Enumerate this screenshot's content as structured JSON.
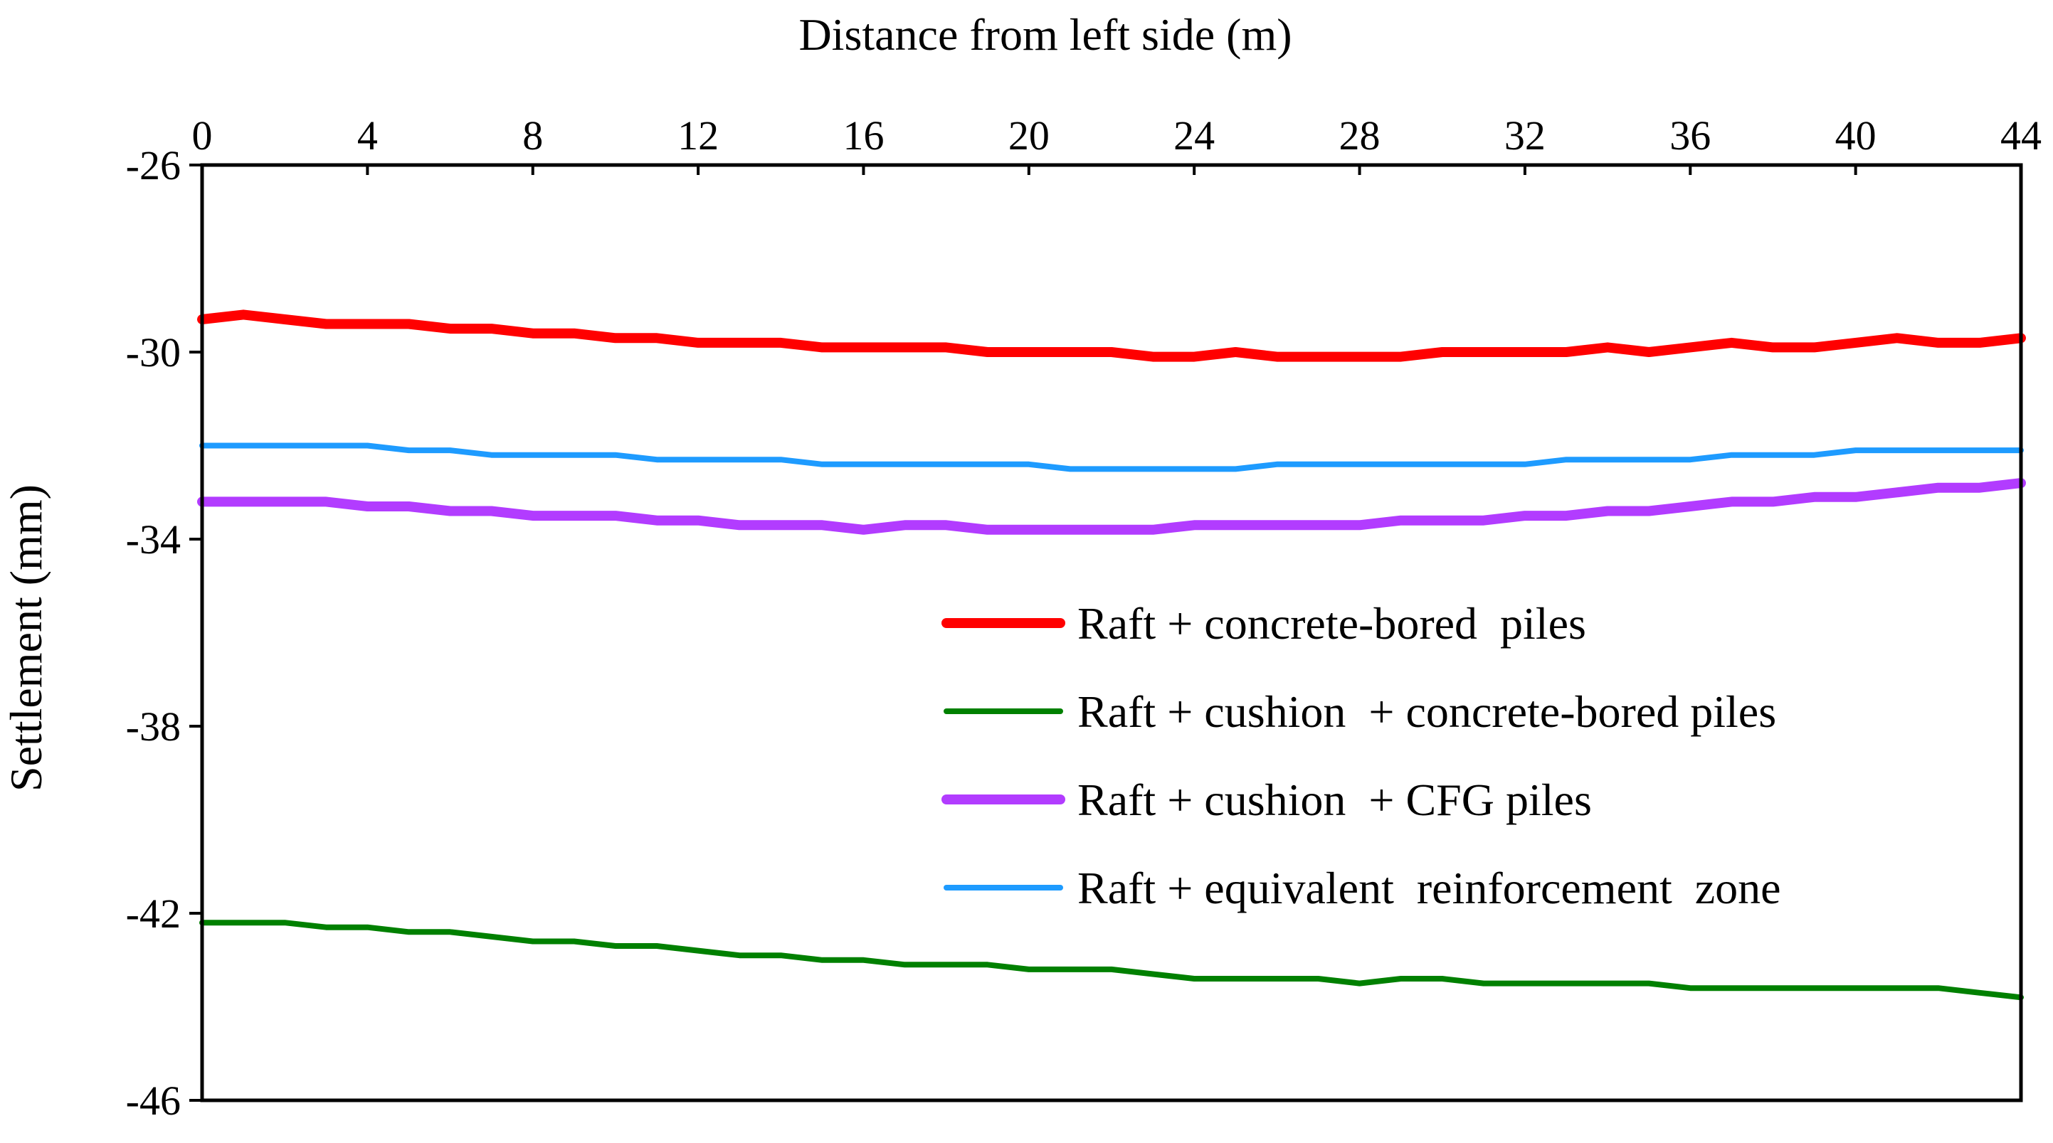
{
  "chart_data": {
    "type": "line",
    "title": "",
    "xlabel": "Distance from left side (m)",
    "ylabel": "Settlement (mm)",
    "xlim": [
      0,
      44
    ],
    "ylim": [
      -46,
      -26
    ],
    "xticks": [
      0,
      4,
      8,
      12,
      16,
      20,
      24,
      28,
      32,
      36,
      40,
      44
    ],
    "yticks": [
      -26,
      -30,
      -34,
      -38,
      -42,
      -46
    ],
    "xtick_labels": [
      "0",
      "4",
      "8",
      "12",
      "16",
      "20",
      "24",
      "28",
      "32",
      "36",
      "40",
      "44"
    ],
    "ytick_labels": [
      "-26",
      "-30",
      "-34",
      "-38",
      "-42",
      "-46"
    ],
    "x_axis_position": "top",
    "grid": false,
    "legend_position": "right",
    "series": [
      {
        "name": "Raft + concrete-bored  piles",
        "color": "#ff0000",
        "line_weight": "thick",
        "x": [
          0,
          1,
          2,
          3,
          4,
          5,
          6,
          7,
          8,
          9,
          10,
          11,
          12,
          13,
          14,
          15,
          16,
          17,
          18,
          19,
          20,
          21,
          22,
          23,
          24,
          25,
          26,
          27,
          28,
          29,
          30,
          31,
          32,
          33,
          34,
          35,
          36,
          37,
          38,
          39,
          40,
          41,
          42,
          43,
          44
        ],
        "values": [
          -29.3,
          -29.2,
          -29.3,
          -29.4,
          -29.4,
          -29.4,
          -29.5,
          -29.5,
          -29.6,
          -29.6,
          -29.7,
          -29.7,
          -29.8,
          -29.8,
          -29.8,
          -29.9,
          -29.9,
          -29.9,
          -29.9,
          -30.0,
          -30.0,
          -30.0,
          -30.0,
          -30.1,
          -30.1,
          -30.0,
          -30.1,
          -30.1,
          -30.1,
          -30.1,
          -30.0,
          -30.0,
          -30.0,
          -30.0,
          -29.9,
          -30.0,
          -29.9,
          -29.8,
          -29.9,
          -29.9,
          -29.8,
          -29.7,
          -29.8,
          -29.8,
          -29.7
        ]
      },
      {
        "name": "Raft + cushion  + concrete-bored piles",
        "color": "#008000",
        "line_weight": "medium",
        "x": [
          0,
          1,
          2,
          3,
          4,
          5,
          6,
          7,
          8,
          9,
          10,
          11,
          12,
          13,
          14,
          15,
          16,
          17,
          18,
          19,
          20,
          21,
          22,
          23,
          24,
          25,
          26,
          27,
          28,
          29,
          30,
          31,
          32,
          33,
          34,
          35,
          36,
          37,
          38,
          39,
          40,
          41,
          42,
          43,
          44
        ],
        "values": [
          -42.2,
          -42.2,
          -42.2,
          -42.3,
          -42.3,
          -42.4,
          -42.4,
          -42.5,
          -42.6,
          -42.6,
          -42.7,
          -42.7,
          -42.8,
          -42.9,
          -42.9,
          -43.0,
          -43.0,
          -43.1,
          -43.1,
          -43.1,
          -43.2,
          -43.2,
          -43.2,
          -43.3,
          -43.4,
          -43.4,
          -43.4,
          -43.4,
          -43.5,
          -43.4,
          -43.4,
          -43.5,
          -43.5,
          -43.5,
          -43.5,
          -43.5,
          -43.6,
          -43.6,
          -43.6,
          -43.6,
          -43.6,
          -43.6,
          -43.6,
          -43.7,
          -43.8
        ]
      },
      {
        "name": "Raft + cushion  + CFG piles",
        "color": "#b23cff",
        "line_weight": "thick",
        "x": [
          0,
          1,
          2,
          3,
          4,
          5,
          6,
          7,
          8,
          9,
          10,
          11,
          12,
          13,
          14,
          15,
          16,
          17,
          18,
          19,
          20,
          21,
          22,
          23,
          24,
          25,
          26,
          27,
          28,
          29,
          30,
          31,
          32,
          33,
          34,
          35,
          36,
          37,
          38,
          39,
          40,
          41,
          42,
          43,
          44
        ],
        "values": [
          -33.2,
          -33.2,
          -33.2,
          -33.2,
          -33.3,
          -33.3,
          -33.4,
          -33.4,
          -33.5,
          -33.5,
          -33.5,
          -33.6,
          -33.6,
          -33.7,
          -33.7,
          -33.7,
          -33.8,
          -33.7,
          -33.7,
          -33.8,
          -33.8,
          -33.8,
          -33.8,
          -33.8,
          -33.7,
          -33.7,
          -33.7,
          -33.7,
          -33.7,
          -33.6,
          -33.6,
          -33.6,
          -33.5,
          -33.5,
          -33.4,
          -33.4,
          -33.3,
          -33.2,
          -33.2,
          -33.1,
          -33.1,
          -33.0,
          -32.9,
          -32.9,
          -32.8
        ]
      },
      {
        "name": "Raft + equivalent  reinforcement  zone",
        "color": "#1e9bff",
        "line_weight": "medium",
        "x": [
          0,
          1,
          2,
          3,
          4,
          5,
          6,
          7,
          8,
          9,
          10,
          11,
          12,
          13,
          14,
          15,
          16,
          17,
          18,
          19,
          20,
          21,
          22,
          23,
          24,
          25,
          26,
          27,
          28,
          29,
          30,
          31,
          32,
          33,
          34,
          35,
          36,
          37,
          38,
          39,
          40,
          41,
          42,
          43,
          44
        ],
        "values": [
          -32.0,
          -32.0,
          -32.0,
          -32.0,
          -32.0,
          -32.1,
          -32.1,
          -32.2,
          -32.2,
          -32.2,
          -32.2,
          -32.3,
          -32.3,
          -32.3,
          -32.3,
          -32.4,
          -32.4,
          -32.4,
          -32.4,
          -32.4,
          -32.4,
          -32.5,
          -32.5,
          -32.5,
          -32.5,
          -32.5,
          -32.4,
          -32.4,
          -32.4,
          -32.4,
          -32.4,
          -32.4,
          -32.4,
          -32.3,
          -32.3,
          -32.3,
          -32.3,
          -32.2,
          -32.2,
          -32.2,
          -32.1,
          -32.1,
          -32.1,
          -32.1,
          -32.1
        ]
      }
    ]
  }
}
